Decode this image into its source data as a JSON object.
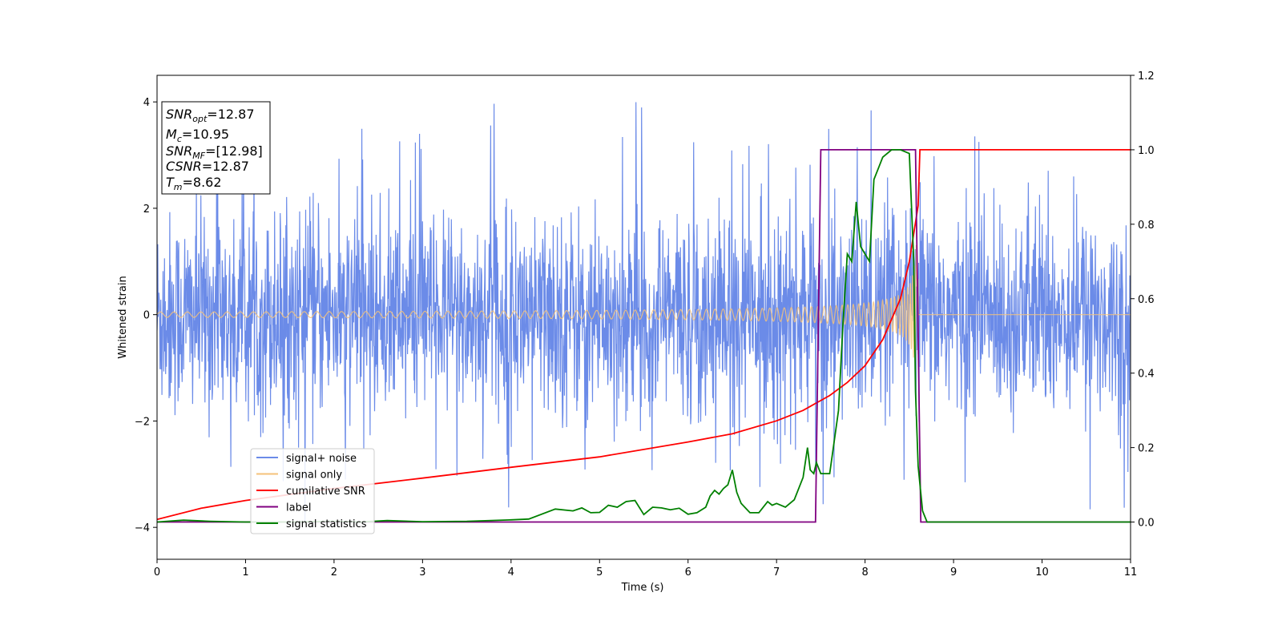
{
  "chart_data": {
    "type": "line",
    "xlabel": "Time (s)",
    "ylabel": "Whitened strain",
    "xlim": [
      0,
      11
    ],
    "ylim": [
      -4.6,
      4.5
    ],
    "y2lim": [
      -0.1,
      1.2
    ],
    "x_ticks": [
      0,
      1,
      2,
      3,
      4,
      5,
      6,
      7,
      8,
      9,
      10,
      11
    ],
    "y_ticks": [
      -4,
      -2,
      0,
      2,
      4
    ],
    "y2_ticks": [
      "0.0",
      "0.2",
      "0.4",
      "0.6",
      "0.8",
      "1.0",
      "1.2"
    ],
    "grid": false,
    "legend_position": "lower-left",
    "series": [
      {
        "name": "signal+ noise",
        "color": "#6b8be8",
        "axis": "left",
        "description_kind": "noise",
        "noise_std": 0.95,
        "noise_peaks_max": 4.1,
        "noise_peaks_min": -3.9
      },
      {
        "name": "signal only",
        "color": "#f5c27a",
        "axis": "left",
        "description_kind": "chirp",
        "start": 0,
        "end": 8.6,
        "amp_start": 0.05,
        "amp_end": 1.35
      },
      {
        "name": "cumilative SNR",
        "color": "#ff0000",
        "axis": "right",
        "x": [
          0,
          0.5,
          1,
          2,
          3,
          4,
          5,
          6,
          6.5,
          7,
          7.3,
          7.6,
          7.8,
          8.0,
          8.2,
          8.4,
          8.5,
          8.6,
          8.62,
          11
        ],
        "y": [
          0.007,
          0.037,
          0.058,
          0.09,
          0.118,
          0.147,
          0.175,
          0.215,
          0.237,
          0.272,
          0.3,
          0.34,
          0.375,
          0.42,
          0.49,
          0.6,
          0.7,
          0.85,
          1.0,
          1.0
        ]
      },
      {
        "name": "label",
        "color": "#800080",
        "axis": "right",
        "x": [
          0,
          7.44,
          7.5,
          8.57,
          8.63,
          11
        ],
        "y": [
          0,
          0,
          1.0,
          1.0,
          0,
          0
        ]
      },
      {
        "name": "signal statistics",
        "color": "#008000",
        "axis": "right",
        "x": [
          0,
          0.3,
          0.6,
          1,
          1.5,
          2,
          2.3,
          2.6,
          3,
          3.5,
          4,
          4.2,
          4.5,
          4.7,
          4.8,
          4.9,
          5.0,
          5.1,
          5.2,
          5.3,
          5.4,
          5.5,
          5.6,
          5.7,
          5.8,
          5.9,
          6.0,
          6.1,
          6.2,
          6.25,
          6.3,
          6.35,
          6.4,
          6.45,
          6.5,
          6.55,
          6.6,
          6.7,
          6.8,
          6.9,
          6.95,
          7.0,
          7.1,
          7.2,
          7.3,
          7.35,
          7.38,
          7.42,
          7.45,
          7.5,
          7.6,
          7.7,
          7.75,
          7.8,
          7.85,
          7.9,
          7.95,
          8.0,
          8.05,
          8.1,
          8.15,
          8.2,
          8.3,
          8.4,
          8.5,
          8.55,
          8.57,
          8.6,
          8.65,
          8.7,
          8.8,
          11
        ],
        "y": [
          0,
          0.005,
          0.002,
          0.0,
          0.0,
          0.002,
          0.0,
          0.004,
          0.001,
          0.002,
          0.006,
          0.008,
          0.035,
          0.03,
          0.038,
          0.025,
          0.026,
          0.045,
          0.04,
          0.055,
          0.058,
          0.02,
          0.04,
          0.038,
          0.033,
          0.037,
          0.021,
          0.025,
          0.04,
          0.07,
          0.085,
          0.075,
          0.09,
          0.1,
          0.14,
          0.08,
          0.05,
          0.025,
          0.025,
          0.055,
          0.045,
          0.05,
          0.04,
          0.06,
          0.12,
          0.2,
          0.14,
          0.13,
          0.16,
          0.13,
          0.13,
          0.3,
          0.53,
          0.72,
          0.7,
          0.86,
          0.74,
          0.72,
          0.7,
          0.92,
          0.95,
          0.98,
          1.0,
          1.0,
          0.99,
          0.7,
          0.35,
          0.15,
          0.03,
          0.0,
          0.0,
          0.0
        ]
      }
    ],
    "info_box": [
      {
        "main": "SNR",
        "sub": "opt",
        "value": "=12.87"
      },
      {
        "main": "M",
        "sub": "c",
        "value": "=10.95"
      },
      {
        "main": "SNR",
        "sub": "MF",
        "value": "=[12.98]"
      },
      {
        "main": "CSNR",
        "sub": "",
        "value": "=12.87"
      },
      {
        "main": "T",
        "sub": "m",
        "value": "=8.62"
      }
    ]
  }
}
